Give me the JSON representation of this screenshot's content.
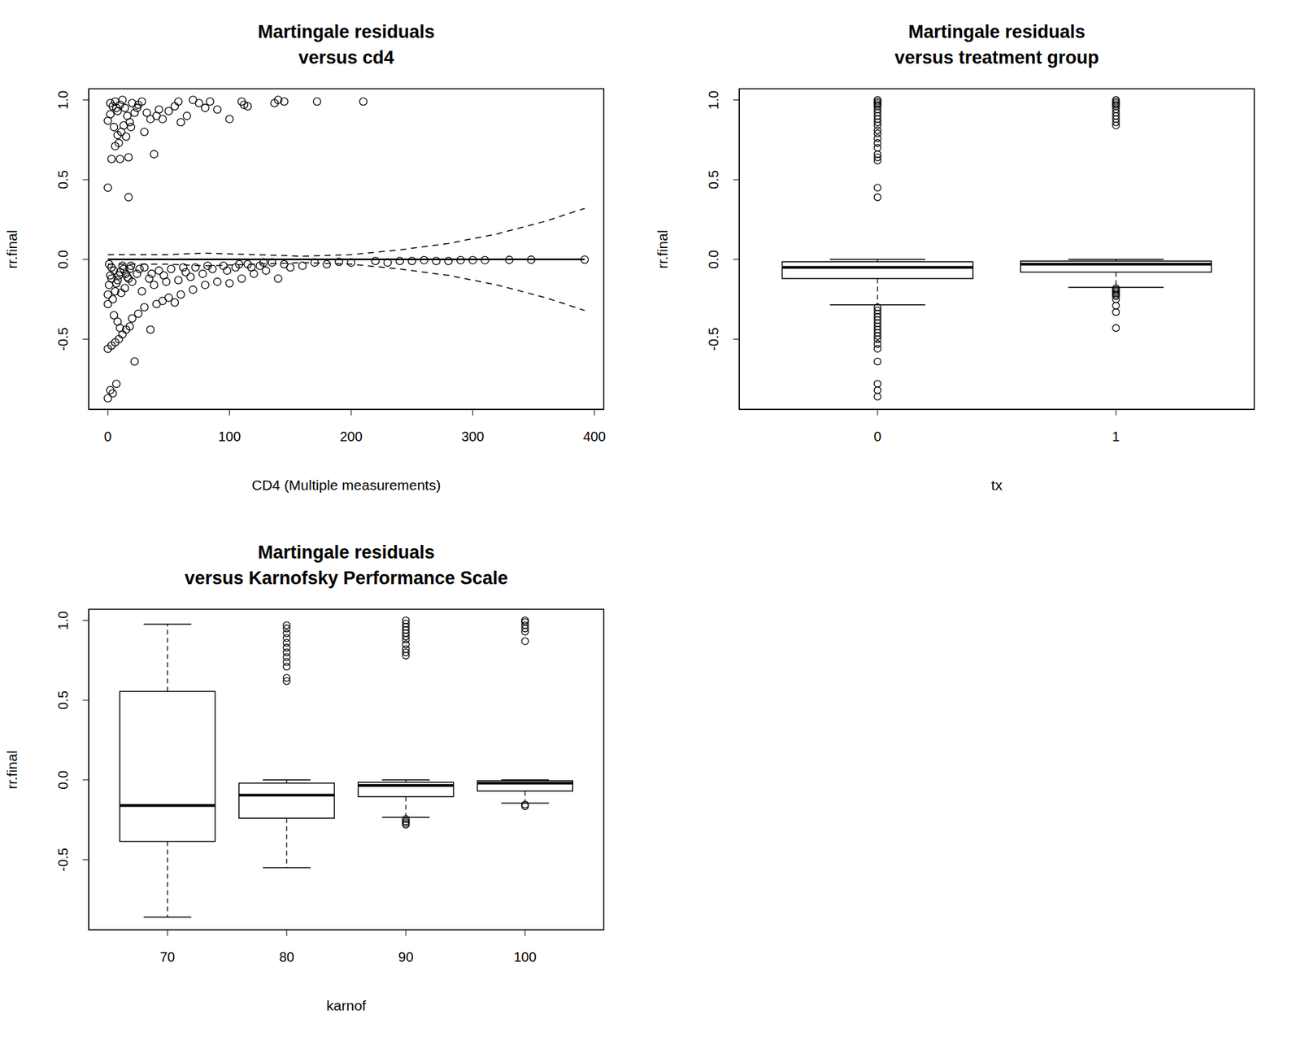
{
  "chart_data": [
    {
      "type": "scatter",
      "title": "Martingale residuals\nversus cd4",
      "x_label": "CD4 (Multiple measurements)",
      "y_label": "rr.final",
      "xlim": [
        -15.7,
        407.7
      ],
      "xticks": [
        0,
        100,
        200,
        300,
        400
      ],
      "ylim": [
        -0.94,
        1.07
      ],
      "yticks": [
        -0.5,
        {
          "value": 0,
          "label": "0.0"
        },
        0.5,
        {
          "value": 1,
          "label": "1.0"
        }
      ],
      "series": [
        {
          "type": "scatter",
          "marker": "circle",
          "color": "#000000",
          "x": [
            0,
            2,
            4,
            6,
            8,
            10,
            12,
            14,
            16,
            18,
            20,
            22,
            3,
            6,
            9,
            11,
            13,
            15,
            10,
            17,
            5,
            8,
            25,
            28,
            30,
            32,
            35,
            38,
            40,
            42,
            45,
            50,
            55,
            58,
            60,
            65,
            70,
            75,
            80,
            84,
            90,
            100,
            110,
            112,
            115,
            137,
            140,
            145,
            172,
            210,
            0,
            17,
            2,
            7,
            19,
            24,
            0,
            2,
            4,
            7,
            0,
            3,
            6,
            9,
            12,
            15,
            18,
            22,
            5,
            8,
            10,
            20,
            25,
            30,
            35,
            40,
            45,
            50,
            55,
            60,
            70,
            80,
            90,
            100,
            110,
            120,
            130,
            140,
            150,
            160,
            180,
            200,
            0,
            0,
            1,
            2,
            3,
            4,
            6,
            8,
            10,
            12,
            14,
            16,
            18,
            20,
            24,
            28,
            30,
            34,
            38,
            42,
            46,
            52,
            58,
            64,
            72,
            78,
            86,
            95,
            105,
            115,
            125,
            135,
            145,
            170,
            190,
            220,
            230,
            240,
            250,
            260,
            270,
            280,
            290,
            300,
            310,
            330,
            348,
            392,
            1,
            3,
            5,
            7,
            9,
            11,
            13,
            15,
            17,
            19,
            26,
            36,
            48,
            62,
            68,
            82,
            98,
            108,
            118,
            128
          ],
          "values": [
            0.87,
            0.98,
            0.96,
            0.99,
            0.93,
            0.97,
            1.0,
            0.95,
            0.9,
            0.86,
            0.98,
            0.92,
            0.63,
            0.71,
            0.73,
            0.8,
            0.84,
            0.77,
            0.63,
            0.64,
            0.83,
            0.78,
            0.97,
            0.99,
            0.8,
            0.92,
            0.88,
            0.66,
            0.9,
            0.94,
            0.88,
            0.93,
            0.96,
            0.99,
            0.86,
            0.9,
            1.0,
            0.98,
            0.95,
            0.99,
            0.94,
            0.88,
            0.99,
            0.97,
            0.96,
            0.98,
            1.0,
            0.99,
            0.99,
            0.99,
            0.45,
            0.39,
            0.91,
            0.95,
            0.83,
            0.95,
            -0.87,
            -0.82,
            -0.84,
            -0.78,
            -0.56,
            -0.54,
            -0.52,
            -0.5,
            -0.47,
            -0.44,
            -0.42,
            -0.64,
            -0.35,
            -0.39,
            -0.43,
            -0.37,
            -0.34,
            -0.3,
            -0.44,
            -0.28,
            -0.26,
            -0.24,
            -0.27,
            -0.22,
            -0.19,
            -0.16,
            -0.14,
            -0.15,
            -0.12,
            -0.09,
            -0.07,
            -0.12,
            -0.05,
            -0.04,
            -0.03,
            -0.02,
            -0.28,
            -0.22,
            -0.16,
            -0.1,
            -0.05,
            -0.25,
            -0.2,
            -0.13,
            -0.08,
            -0.04,
            -0.18,
            -0.11,
            -0.06,
            -0.14,
            -0.09,
            -0.2,
            -0.05,
            -0.12,
            -0.16,
            -0.07,
            -0.1,
            -0.06,
            -0.13,
            -0.08,
            -0.05,
            -0.09,
            -0.06,
            -0.04,
            -0.05,
            -0.03,
            -0.04,
            -0.02,
            -0.03,
            -0.02,
            -0.015,
            -0.01,
            -0.02,
            -0.01,
            -0.01,
            -0.005,
            -0.01,
            -0.01,
            -0.005,
            -0.005,
            -0.005,
            -0.003,
            -0.002,
            -0.001,
            -0.03,
            -0.12,
            -0.07,
            -0.15,
            -0.1,
            -0.21,
            -0.06,
            -0.09,
            -0.12,
            -0.04,
            -0.06,
            -0.09,
            -0.14,
            -0.05,
            -0.11,
            -0.04,
            -0.07,
            -0.03,
            -0.05,
            -0.02
          ]
        },
        {
          "type": "line",
          "line_style": "solid",
          "color": "#000000",
          "x": [
            0,
            392
          ],
          "values": [
            0,
            0
          ]
        },
        {
          "type": "line",
          "line_style": "dashed",
          "color": "#000000",
          "x": [
            0,
            50,
            80,
            120,
            160,
            200,
            240,
            280,
            320,
            360,
            392
          ],
          "values": [
            0.03,
            0.03,
            0.04,
            0.03,
            0.02,
            0.03,
            0.06,
            0.1,
            0.16,
            0.24,
            0.32
          ]
        },
        {
          "type": "line",
          "line_style": "dashed",
          "color": "#000000",
          "x": [
            0,
            50,
            80,
            120,
            160,
            200,
            240,
            280,
            320,
            360,
            392
          ],
          "values": [
            -0.03,
            -0.03,
            -0.04,
            -0.03,
            -0.02,
            -0.03,
            -0.06,
            -0.1,
            -0.16,
            -0.24,
            -0.32
          ]
        }
      ]
    },
    {
      "type": "boxplot",
      "title": "Martingale residuals\nversus treatment group",
      "x_label": "tx",
      "y_label": "rr.final",
      "color": "#000000",
      "categories": [
        "0",
        "1"
      ],
      "ylim": [
        -0.94,
        1.07
      ],
      "yticks": [
        -0.5,
        {
          "value": 0,
          "label": "0.0"
        },
        0.5,
        {
          "value": 1,
          "label": "1.0"
        }
      ],
      "boxes": [
        {
          "whisker_low": -0.285,
          "q1": -0.12,
          "median": -0.05,
          "q3": -0.015,
          "whisker_high": 0.0,
          "outliers": [
            0.39,
            0.45,
            0.62,
            0.64,
            0.66,
            0.7,
            0.73,
            0.76,
            0.79,
            0.81,
            0.84,
            0.86,
            0.88,
            0.9,
            0.92,
            0.94,
            0.96,
            0.97,
            0.98,
            0.99,
            1.0,
            -0.3,
            -0.32,
            -0.34,
            -0.36,
            -0.38,
            -0.4,
            -0.42,
            -0.44,
            -0.46,
            -0.48,
            -0.5,
            -0.53,
            -0.56,
            -0.64,
            -0.78,
            -0.82,
            -0.86
          ]
        },
        {
          "whisker_low": -0.175,
          "q1": -0.08,
          "median": -0.03,
          "q3": -0.01,
          "whisker_high": 0.0,
          "outliers": [
            0.84,
            0.86,
            0.88,
            0.9,
            0.92,
            0.94,
            0.96,
            0.97,
            0.98,
            0.99,
            1.0,
            -0.18,
            -0.19,
            -0.2,
            -0.21,
            -0.22,
            -0.23,
            -0.25,
            -0.29,
            -0.33,
            -0.43
          ]
        }
      ]
    },
    {
      "type": "boxplot",
      "title": "Martingale residuals\nversus Karnofsky Performance Scale",
      "x_label": "karnof",
      "y_label": "rr.final",
      "color": "#000000",
      "categories": [
        "70",
        "80",
        "90",
        "100"
      ],
      "ylim": [
        -0.94,
        1.07
      ],
      "yticks": [
        -0.5,
        {
          "value": 0,
          "label": "0.0"
        },
        0.5,
        {
          "value": 1,
          "label": "1.0"
        }
      ],
      "boxes": [
        {
          "whisker_low": -0.86,
          "q1": -0.385,
          "median": -0.16,
          "q3": 0.555,
          "whisker_high": 0.976,
          "outliers": []
        },
        {
          "whisker_low": -0.55,
          "q1": -0.24,
          "median": -0.095,
          "q3": -0.02,
          "whisker_high": 0.0,
          "outliers": [
            0.62,
            0.64,
            0.71,
            0.74,
            0.77,
            0.8,
            0.83,
            0.86,
            0.89,
            0.92,
            0.95,
            0.97
          ]
        },
        {
          "whisker_low": -0.235,
          "q1": -0.105,
          "median": -0.035,
          "q3": -0.015,
          "whisker_high": 0.0,
          "outliers": [
            0.78,
            0.8,
            0.82,
            0.85,
            0.88,
            0.9,
            0.92,
            0.94,
            0.96,
            0.98,
            1.0,
            -0.245,
            -0.26,
            -0.27,
            -0.28
          ]
        },
        {
          "whisker_low": -0.145,
          "q1": -0.07,
          "median": -0.02,
          "q3": -0.005,
          "whisker_high": 0.0,
          "outliers": [
            0.87,
            0.93,
            0.95,
            0.97,
            0.99,
            1.0,
            -0.155,
            -0.165
          ]
        }
      ]
    }
  ]
}
